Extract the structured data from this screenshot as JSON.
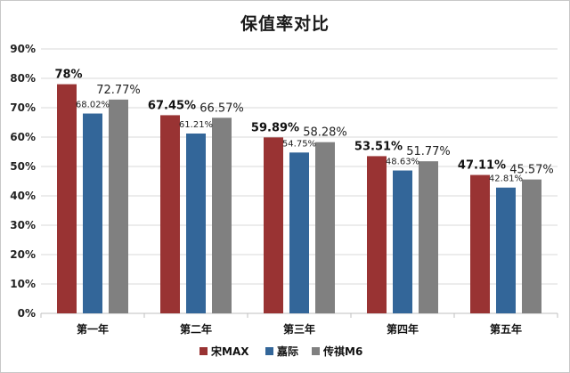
{
  "chart_data": {
    "type": "bar",
    "title": "保值率对比",
    "xlabel": "",
    "ylabel": "",
    "categories": [
      "第一年",
      "第二年",
      "第三年",
      "第四年",
      "第五年"
    ],
    "yticks": [
      "0%",
      "10%",
      "20%",
      "30%",
      "40%",
      "50%",
      "60%",
      "70%",
      "80%",
      "90%"
    ],
    "ylim": [
      0,
      90
    ],
    "grid": true,
    "legend_position": "bottom-center",
    "series": [
      {
        "name": "宋MAX",
        "color": "#993333",
        "values": [
          78,
          67.45,
          59.89,
          53.51,
          47.11
        ],
        "labels": [
          "78%",
          "67.45%",
          "59.89%",
          "53.51%",
          "47.11%"
        ]
      },
      {
        "name": "嘉际",
        "color": "#336699",
        "values": [
          68.02,
          61.21,
          54.75,
          48.63,
          42.81
        ],
        "labels": [
          "68.02%",
          "61.21%",
          "54.75%",
          "48.63%",
          "42.81%"
        ]
      },
      {
        "name": "传祺M6",
        "color": "#808080",
        "values": [
          72.77,
          66.57,
          58.28,
          51.77,
          45.57
        ],
        "labels": [
          "72.77%",
          "66.57%",
          "58.28%",
          "51.77%",
          "45.57%"
        ]
      }
    ]
  }
}
